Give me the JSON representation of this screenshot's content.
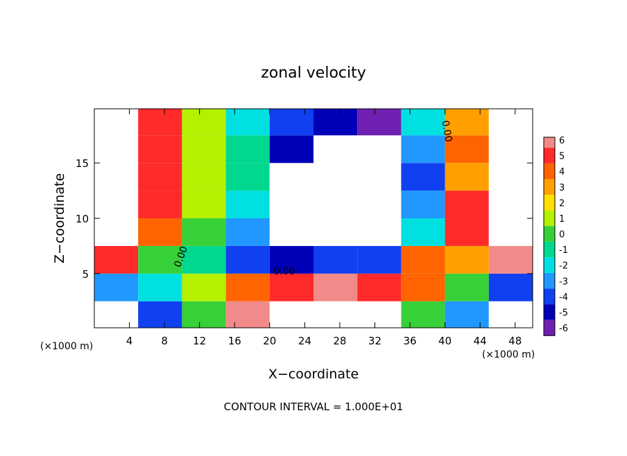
{
  "chart_data": {
    "type": "contour",
    "title": "zonal velocity",
    "x_label": "X−coordinate",
    "y_label": "Z−coordinate",
    "x_unit": "(×1000 m)",
    "y_unit": "(×1000 m)",
    "footnote": "CONTOUR INTERVAL = 1.000E+01",
    "contour_labels": [
      "0.00",
      "0.00",
      "0.00"
    ],
    "xlim": [
      0,
      50
    ],
    "ylim": [
      0.1,
      19.9
    ],
    "xticks": [
      4,
      8,
      12,
      16,
      20,
      24,
      28,
      32,
      36,
      40,
      44,
      48
    ],
    "yticks": [
      5,
      10,
      15
    ],
    "x": [
      2.5,
      7.5,
      12.5,
      17.5,
      22.5,
      27.5,
      32.5,
      37.5,
      42.5,
      47.5
    ],
    "y": [
      1.25,
      3.75,
      6.25,
      8.75,
      11.25,
      13.75,
      16.25,
      18.75
    ],
    "values": [
      [
        8,
        -4,
        0,
        6,
        8,
        8,
        8,
        0,
        -3,
        8
      ],
      [
        -3,
        -2,
        1,
        4,
        5,
        6,
        5,
        4,
        0,
        -4
      ],
      [
        5,
        0,
        -1,
        -4,
        -5,
        -4,
        -4,
        4,
        3,
        6
      ],
      [
        7,
        4,
        0,
        -3,
        -8,
        -8,
        -8,
        -2,
        5,
        8
      ],
      [
        8,
        5,
        1,
        -2,
        -8,
        -8,
        -8,
        -3,
        5,
        8
      ],
      [
        8,
        5,
        1,
        -1,
        -8,
        -8,
        -8,
        -4,
        3,
        8
      ],
      [
        8,
        5,
        1,
        -1,
        -5,
        -8,
        -8,
        -3,
        4,
        8
      ],
      [
        8,
        5,
        1,
        -2,
        -4,
        -5,
        -6,
        -2,
        3,
        8
      ]
    ],
    "levels": [
      6,
      5,
      4,
      3,
      2,
      1,
      0,
      -1,
      -2,
      -3,
      -4,
      -5,
      -6
    ],
    "colors": [
      "#f28a8a",
      "#ff2a2a",
      "#ff6400",
      "#ffa000",
      "#ffe000",
      "#b4f000",
      "#38d038",
      "#00d890",
      "#00e0e0",
      "#2098ff",
      "#1040f0",
      "#0000b8",
      "#7020b0"
    ]
  }
}
